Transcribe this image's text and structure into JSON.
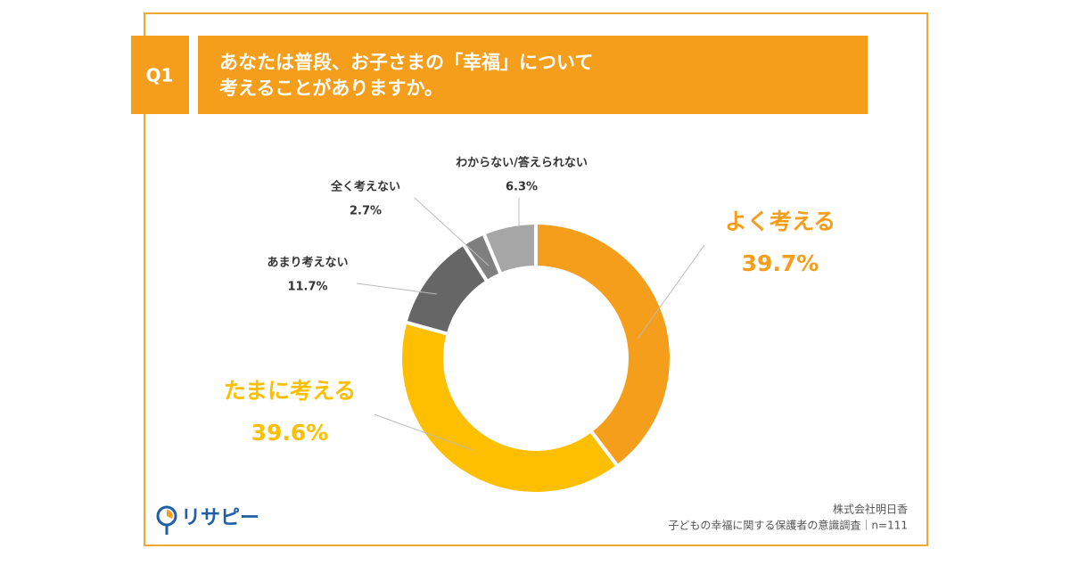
{
  "badge": "Q1",
  "question": [
    "あなたは普段、お子さまの「幸福」について",
    "考えることがありますか。"
  ],
  "chart_data": {
    "type": "donut",
    "categories": [
      "よく考える",
      "たまに考える",
      "あまり考えない",
      "全く考えない",
      "わからない/答えられない"
    ],
    "values": [
      39.7,
      39.6,
      11.7,
      2.7,
      6.3
    ],
    "value_labels": [
      "39.7%",
      "39.6%",
      "11.7%",
      "2.7%",
      "6.3%"
    ],
    "colors": [
      "#f59e1b",
      "#fdbf00",
      "#666666",
      "#7f7f7f",
      "#a6a6a6"
    ]
  },
  "source": [
    "株式会社明日香",
    "子どもの幸福に関する保護者の意識調査｜n=111"
  ],
  "logo": "リサピー"
}
